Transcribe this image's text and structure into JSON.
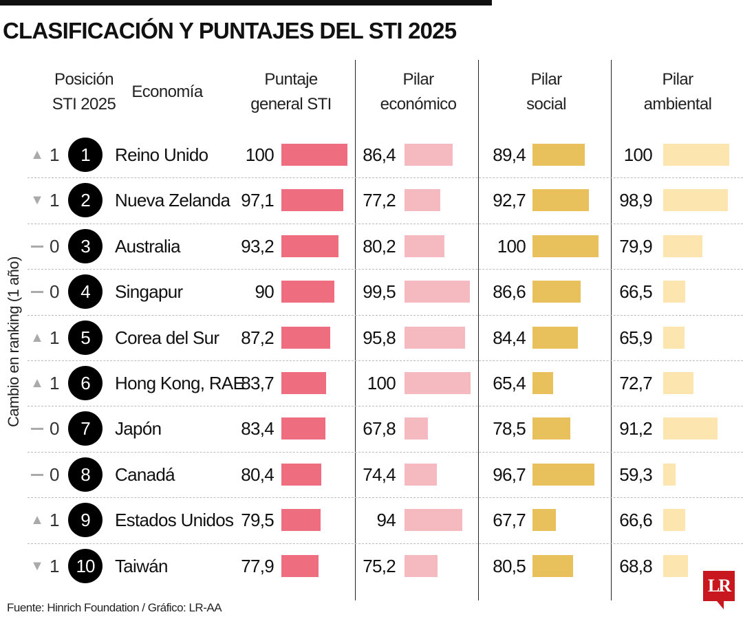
{
  "title": "CLASIFICACIÓN Y PUNTAJES DEL STI 2025",
  "headers": {
    "position": [
      "Posición",
      "STI 2025"
    ],
    "economy": "Economía",
    "general": [
      "Puntaje",
      "general STI"
    ],
    "economic": [
      "Pilar",
      "económico"
    ],
    "social": [
      "Pilar",
      "social"
    ],
    "environmental": [
      "Pilar",
      "ambiental"
    ]
  },
  "side_label": "Cambio en ranking (1 año)",
  "footer": "Fuente: Hinrich Foundation  / Gráfico: LR-AA",
  "logo": "LR",
  "colors": {
    "general": "#EE6E7F",
    "economic": "#F4BAC0",
    "social": "#E8C15C",
    "environmental": "#FDE5B0"
  },
  "chart_data": {
    "type": "table",
    "bar_scale": [
      50,
      100
    ],
    "columns": [
      "Cambio en ranking (1 año)",
      "Posición STI 2025",
      "Economía",
      "Puntaje general STI",
      "Pilar económico",
      "Pilar social",
      "Pilar ambiental"
    ],
    "rows": [
      {
        "change_dir": "up",
        "change": "1",
        "rank": "1",
        "economy": "Reino Unido",
        "general": "100",
        "economic": "86,4",
        "social": "89,4",
        "environmental": "100"
      },
      {
        "change_dir": "down",
        "change": "1",
        "rank": "2",
        "economy": "Nueva Zelanda",
        "general": "97,1",
        "economic": "77,2",
        "social": "92,7",
        "environmental": "98,9"
      },
      {
        "change_dir": "same",
        "change": "0",
        "rank": "3",
        "economy": "Australia",
        "general": "93,2",
        "economic": "80,2",
        "social": "100",
        "environmental": "79,9"
      },
      {
        "change_dir": "same",
        "change": "0",
        "rank": "4",
        "economy": "Singapur",
        "general": "90",
        "economic": "99,5",
        "social": "86,6",
        "environmental": "66,5"
      },
      {
        "change_dir": "up",
        "change": "1",
        "rank": "5",
        "economy": "Corea del Sur",
        "general": "87,2",
        "economic": "95,8",
        "social": "84,4",
        "environmental": "65,9"
      },
      {
        "change_dir": "up",
        "change": "1",
        "rank": "6",
        "economy": "Hong Kong, RAE",
        "general": "83,7",
        "economic": "100",
        "social": "65,4",
        "environmental": "72,7"
      },
      {
        "change_dir": "same",
        "change": "0",
        "rank": "7",
        "economy": "Japón",
        "general": "83,4",
        "economic": "67,8",
        "social": "78,5",
        "environmental": "91,2"
      },
      {
        "change_dir": "same",
        "change": "0",
        "rank": "8",
        "economy": "Canadá",
        "general": "80,4",
        "economic": "74,4",
        "social": "96,7",
        "environmental": "59,3"
      },
      {
        "change_dir": "up",
        "change": "1",
        "rank": "9",
        "economy": "Estados Unidos",
        "general": "79,5",
        "economic": "94",
        "social": "67,7",
        "environmental": "66,6"
      },
      {
        "change_dir": "down",
        "change": "1",
        "rank": "10",
        "economy": "Taiwán",
        "general": "77,9",
        "economic": "75,2",
        "social": "80,5",
        "environmental": "68,8"
      }
    ]
  }
}
